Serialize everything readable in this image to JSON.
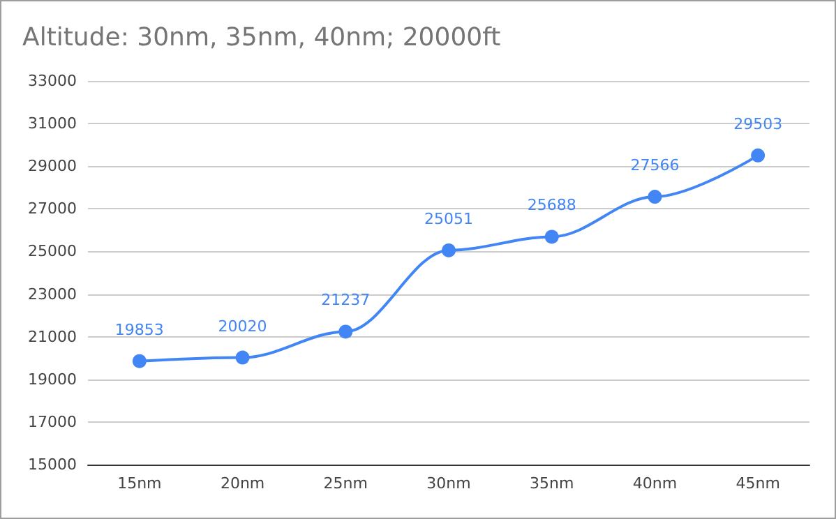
{
  "chart_data": {
    "type": "line",
    "title": "Altitude: 30nm, 35nm, 40nm; 20000ft",
    "categories": [
      "15nm",
      "20nm",
      "25nm",
      "30nm",
      "35nm",
      "40nm",
      "45nm"
    ],
    "series": [
      {
        "color": "#4285f4",
        "values": [
          19853,
          20020,
          21237,
          25051,
          25688,
          27566,
          29503
        ]
      }
    ],
    "ylim": [
      15000,
      33000
    ],
    "yticks": [
      15000,
      17000,
      19000,
      21000,
      23000,
      25000,
      27000,
      29000,
      31000,
      33000
    ],
    "grid": "y",
    "data_labels": true,
    "marker": "circle"
  }
}
